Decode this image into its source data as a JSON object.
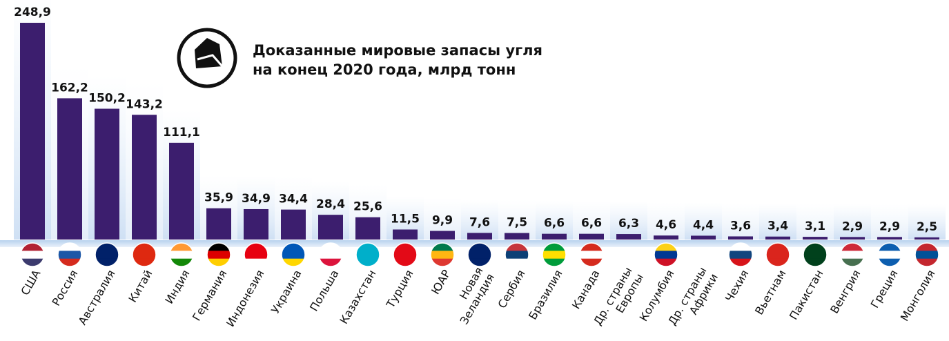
{
  "chart_data": {
    "type": "bar",
    "title": [
      "Доказанные мировые запасы угля",
      "на конец 2020 года, млрд тонн"
    ],
    "categories": [
      "США",
      "Россия",
      "Австралия",
      "Китай",
      "Индия",
      "Германия",
      "Индонезия",
      "Украина",
      "Польша",
      "Казахстан",
      "Турция",
      "ЮАР",
      [
        "Новая",
        "Зеландия"
      ],
      "Сербия",
      "Бразилия",
      "Канада",
      [
        "Др. страны",
        "Европы"
      ],
      "Колумбия",
      [
        "Др. страны",
        "Африки"
      ],
      "Чехия",
      "Вьетнам",
      "Пакистан",
      "Венгрия",
      "Греция",
      "Монголия"
    ],
    "values": [
      248.9,
      162.2,
      150.2,
      143.2,
      111.1,
      35.9,
      34.9,
      34.4,
      28.4,
      25.6,
      11.5,
      9.9,
      7.6,
      7.5,
      6.6,
      6.6,
      6.3,
      4.6,
      4.4,
      3.6,
      3.4,
      3.1,
      2.9,
      2.9,
      2.5
    ],
    "value_labels": [
      "248,9",
      "162,2",
      "150,2",
      "143,2",
      "111,1",
      "35,9",
      "34,9",
      "34,4",
      "28,4",
      "25,6",
      "11,5",
      "9,9",
      "7,6",
      "7,5",
      "6,6",
      "6,6",
      "6,3",
      "4,6",
      "4,4",
      "3,6",
      "3,4",
      "3,1",
      "2,9",
      "2,9",
      "2,5"
    ],
    "color": "#3c1e6e"
  }
}
